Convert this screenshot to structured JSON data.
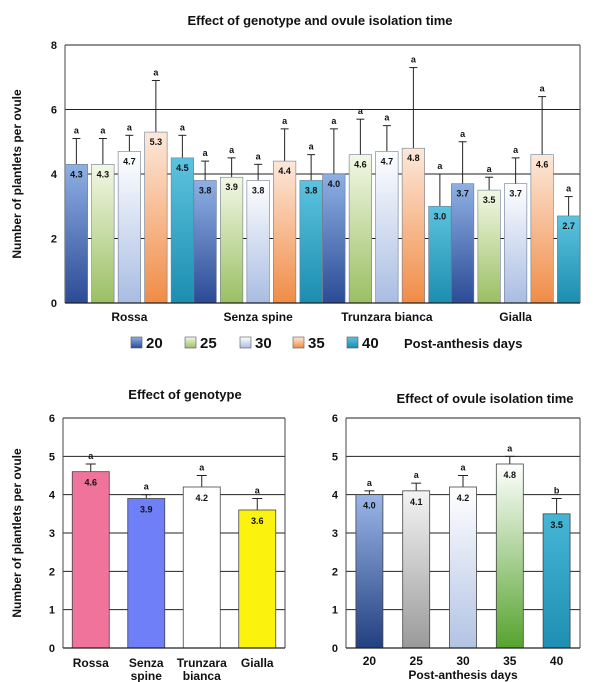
{
  "chart_data": [
    {
      "type": "bar",
      "title": "Effect of genotype and ovule isolation time",
      "ylabel": "Number of plantlets per ovule",
      "ylim": [
        0,
        8
      ],
      "yticks": [
        "0",
        "2",
        "4",
        "6",
        "8"
      ],
      "grid": true,
      "legend_position": "bottom",
      "legend_caption": "Post-anthesis days",
      "categories": [
        "Rossa",
        "Senza spine",
        "Trunzara bianca",
        "Gialla"
      ],
      "series": [
        {
          "name": "20",
          "color": "#4a6fb8",
          "values": [
            4.3,
            3.8,
            4.0,
            3.7
          ],
          "labels": [
            "4.3",
            "3.8",
            "4.0",
            "3.7"
          ],
          "errors": [
            0.8,
            0.6,
            1.4,
            1.3
          ],
          "significance": [
            "a",
            "a",
            "a",
            "a"
          ]
        },
        {
          "name": "25",
          "color": "#c7dca0",
          "values": [
            4.3,
            3.9,
            4.6,
            3.5
          ],
          "labels": [
            "4.3",
            "3.9",
            "4.6",
            "3.5"
          ],
          "errors": [
            0.8,
            0.6,
            1.1,
            0.4
          ],
          "significance": [
            "a",
            "a",
            "a",
            "a"
          ]
        },
        {
          "name": "30",
          "color": "#bfcfe8",
          "values": [
            4.7,
            3.8,
            4.7,
            3.7
          ],
          "labels": [
            "4.7",
            "3.8",
            "4.7",
            "3.7"
          ],
          "errors": [
            0.5,
            0.5,
            0.8,
            0.8
          ],
          "significance": [
            "a",
            "a",
            "a",
            "a"
          ]
        },
        {
          "name": "35",
          "color": "#f7b98c",
          "values": [
            5.3,
            4.4,
            4.8,
            4.6
          ],
          "labels": [
            "5.3",
            "4.4",
            "4.8",
            "4.6"
          ],
          "errors": [
            1.6,
            1.0,
            2.5,
            1.8
          ],
          "significance": [
            "a",
            "a",
            "a",
            "a"
          ]
        },
        {
          "name": "40",
          "color": "#2ea3c6",
          "values": [
            4.5,
            3.8,
            3.0,
            2.7
          ],
          "labels": [
            "4.5",
            "3.8",
            "3.0",
            "2.7"
          ],
          "errors": [
            0.7,
            0.8,
            1.0,
            0.6
          ],
          "significance": [
            "a",
            "a",
            "a",
            "a"
          ]
        }
      ]
    },
    {
      "type": "bar",
      "title": "Effect of genotype",
      "ylabel": "Number of plantlets per ovule",
      "ylim": [
        0,
        6
      ],
      "yticks": [
        "0",
        "1",
        "2",
        "3",
        "4",
        "5",
        "6"
      ],
      "grid": true,
      "categories": [
        "Rossa",
        "Senza spine",
        "Trunzara bianca",
        "Gialla"
      ],
      "values": [
        4.6,
        3.9,
        4.2,
        3.6
      ],
      "labels": [
        "4.6",
        "3.9",
        "4.2",
        "3.6"
      ],
      "errors": [
        0.2,
        0.1,
        0.3,
        0.3
      ],
      "significance": [
        "a",
        "a",
        "a",
        "a"
      ],
      "colors": [
        "#f0739b",
        "#6f7ff7",
        "#ffffff",
        "#fbf20e"
      ]
    },
    {
      "type": "bar",
      "title": "Effect of ovule isolation time",
      "xlabel": "Post-anthesis days",
      "ylim": [
        0,
        6
      ],
      "yticks": [
        "0",
        "1",
        "2",
        "3",
        "4",
        "5",
        "6"
      ],
      "grid": true,
      "categories": [
        "20",
        "25",
        "30",
        "35",
        "40"
      ],
      "values": [
        4.0,
        4.1,
        4.2,
        4.8,
        3.5
      ],
      "labels": [
        "4.0",
        "4.1",
        "4.2",
        "4.8",
        "3.5"
      ],
      "errors": [
        0.1,
        0.2,
        0.3,
        0.2,
        0.4
      ],
      "significance": [
        "a",
        "a",
        "a",
        "a",
        "b"
      ],
      "colors": [
        "#3c5ea8",
        "#b4b4b4",
        "#c5d3ee",
        "#6aa844",
        "#2ea3c6"
      ]
    }
  ]
}
